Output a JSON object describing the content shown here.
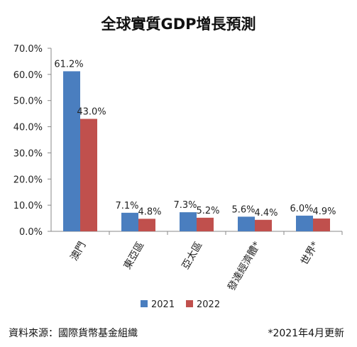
{
  "chart_data": {
    "type": "bar",
    "title": "全球實質GDP增長預測",
    "categories": [
      "澳門",
      "東亞區",
      "亞太區",
      "發達經濟體*",
      "世界*"
    ],
    "series": [
      {
        "name": "2021",
        "values": [
          61.2,
          7.1,
          7.3,
          5.6,
          6.0
        ],
        "labels": [
          "61.2%",
          "7.1%",
          "7.3%",
          "5.6%",
          "6.0%"
        ]
      },
      {
        "name": "2022",
        "values": [
          43.0,
          4.8,
          5.2,
          4.4,
          4.9
        ],
        "labels": [
          "43.0%",
          "4.8%",
          "5.2%",
          "4.4%",
          "4.9%"
        ]
      }
    ],
    "ylim": [
      0,
      70
    ],
    "yticks": [
      0,
      10,
      20,
      30,
      40,
      50,
      60,
      70
    ],
    "ytick_labels": [
      "0.0%",
      "10.0%",
      "20.0%",
      "30.0%",
      "40.0%",
      "50.0%",
      "60.0%",
      "70.0%"
    ],
    "grid": false,
    "legend_position": "bottom",
    "colors": [
      "#4a7ebf",
      "#c0504d"
    ]
  },
  "footer": {
    "source": "資料來源：國際貨幣基金組織",
    "update": "*2021年4月更新"
  }
}
